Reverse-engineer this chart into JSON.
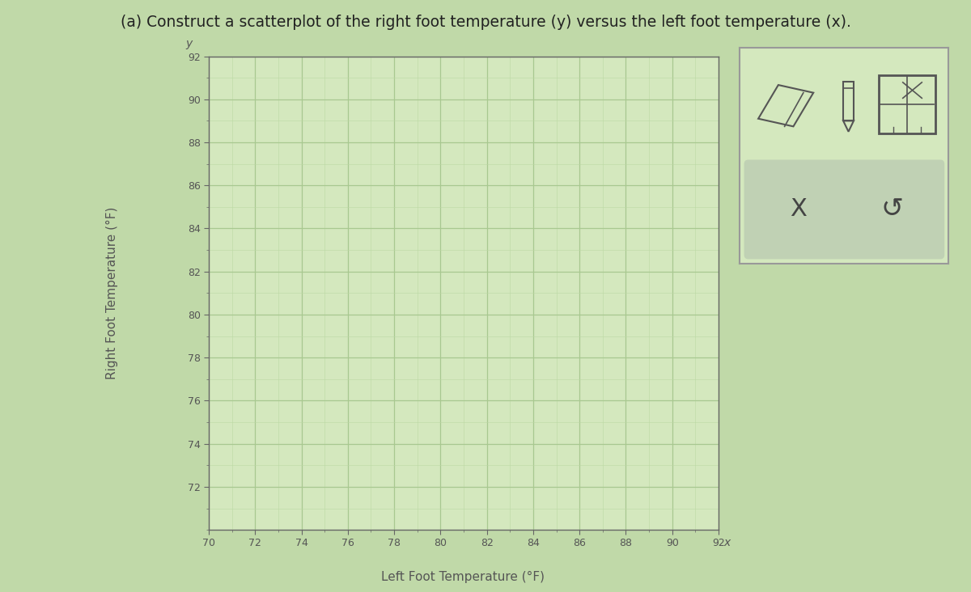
{
  "title": "(a) Construct a scatterplot of the right foot temperature (y) versus the left foot temperature (x).",
  "xlabel": "Left Foot Temperature (°F)",
  "ylabel": "Right Foot Temperature (°F)",
  "xmin": 70,
  "xmax": 92,
  "ymin": 72,
  "ymax": 92,
  "xticks_major": [
    70,
    72,
    74,
    76,
    78,
    80,
    82,
    84,
    86,
    88,
    90,
    92
  ],
  "yticks_major": [
    72,
    74,
    76,
    78,
    80,
    82,
    84,
    86,
    88,
    90,
    92
  ],
  "plot_bg_color": "#d4e8be",
  "outer_bg_color": "#c0d9a8",
  "grid_major_color": "#a8c890",
  "grid_minor_color": "#bcd8a4",
  "axis_line_color": "#666666",
  "tick_label_color": "#555555",
  "title_fontsize": 13.5,
  "axis_label_fontsize": 11,
  "tick_fontsize": 9,
  "panel_outer_bg": "#d4e8be",
  "panel_inner_bg": "#c8d8b8",
  "panel_border_color": "#aaaaaa"
}
